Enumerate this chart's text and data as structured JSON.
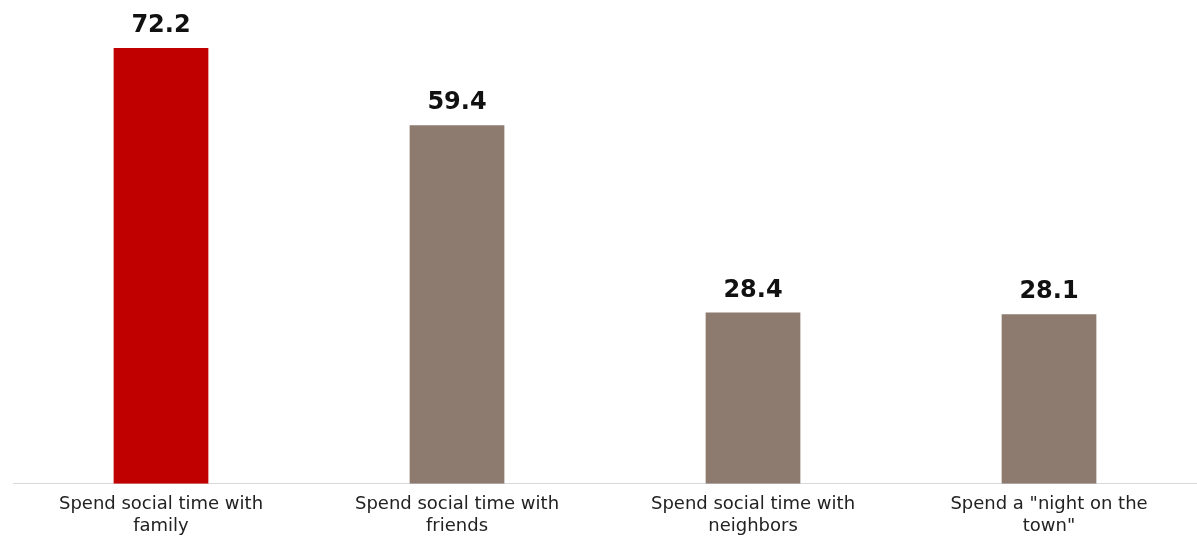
{
  "chart_data": {
    "type": "bar",
    "categories": [
      "Spend social time with family",
      "Spend social time with friends",
      "Spend social time with neighbors",
      "Spend a \"night on the town\""
    ],
    "values": [
      72.2,
      59.4,
      28.4,
      28.1
    ],
    "colors": [
      "#c00000",
      "#8e7b6f",
      "#8e7b6f",
      "#8e7b6f"
    ],
    "relative": false,
    "data_labels": true,
    "grid": false,
    "legend": false
  }
}
